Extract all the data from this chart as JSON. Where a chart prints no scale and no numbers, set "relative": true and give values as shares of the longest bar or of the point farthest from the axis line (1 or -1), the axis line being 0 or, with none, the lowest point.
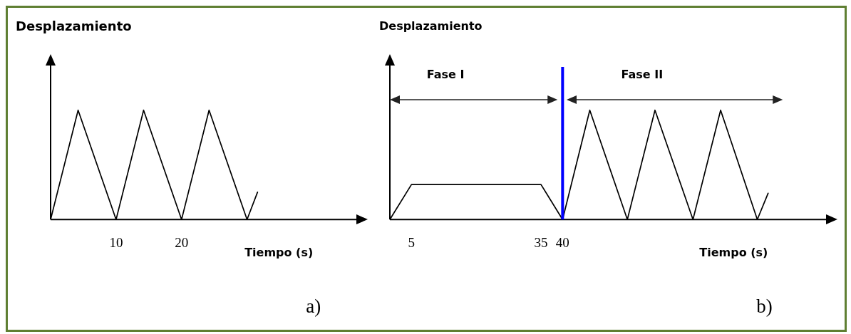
{
  "chart_data": [
    {
      "type": "line",
      "ylabel": "Desplazamiento",
      "xlabel": "Tiempo (s)",
      "relative": true,
      "x": [
        0,
        4.2,
        10,
        14.2,
        20,
        24.2,
        30,
        31.6
      ],
      "xlim": [
        0,
        48
      ],
      "xticks": [
        10,
        20
      ],
      "series": [
        {
          "color": "#000000",
          "values": [
            0,
            1,
            0,
            1,
            0,
            1,
            0,
            0.25
          ]
        }
      ],
      "annotations": [
        "a)"
      ]
    },
    {
      "type": "line",
      "ylabel": "Desplazamiento",
      "xlabel": "Tiempo (s)",
      "relative": true,
      "x": [
        0,
        5,
        35,
        40,
        46.3,
        55,
        61.4,
        70.2,
        76.6,
        85.1,
        87.6
      ],
      "xlim": [
        0,
        103
      ],
      "xticks": [
        5,
        35,
        40
      ],
      "series": [
        {
          "color": "#000000",
          "values": [
            0,
            0.32,
            0.32,
            0,
            1,
            0,
            1,
            0,
            1,
            0,
            0.24
          ]
        }
      ],
      "ref_lines": [
        {
          "axis": "x",
          "value": 40,
          "color": "#0000ff"
        }
      ],
      "annotations": [
        "Fase I",
        "Fase II",
        "b)"
      ]
    }
  ]
}
